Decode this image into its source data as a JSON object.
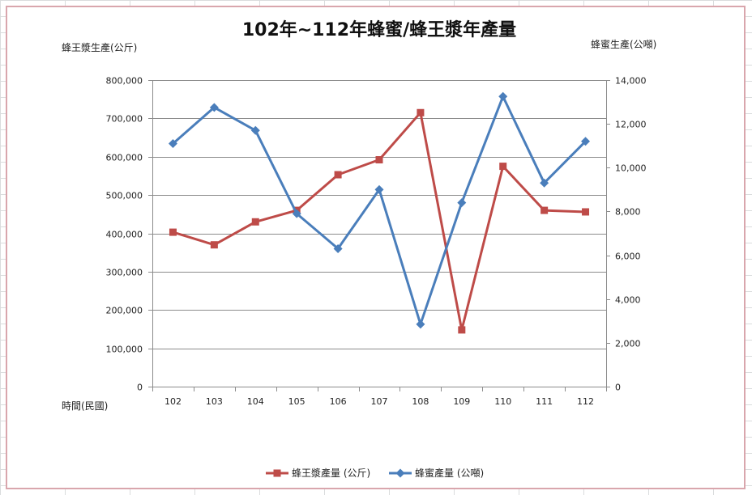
{
  "chart_data": {
    "type": "line",
    "title": "102年~112年蜂蜜/蜂王漿年產量",
    "y_left_label": "蜂王漿生產(公斤)",
    "y_right_label": "蜂蜜生產(公噸)",
    "xlabel": "時間(民國)",
    "categories": [
      "102",
      "103",
      "104",
      "105",
      "106",
      "107",
      "108",
      "109",
      "110",
      "111",
      "112"
    ],
    "y_left_lim": [
      0,
      800000
    ],
    "y_right_lim": [
      0,
      14000
    ],
    "y_left_ticks": [
      "0",
      "100,000",
      "200,000",
      "300,000",
      "400,000",
      "500,000",
      "600,000",
      "700,000",
      "800,000"
    ],
    "y_right_ticks": [
      "0",
      "2,000",
      "4,000",
      "6,000",
      "8,000",
      "10,000",
      "12,000",
      "14,000"
    ],
    "grid": true,
    "legend_position": "bottom",
    "series": [
      {
        "name": "蜂王漿產量 (公斤)",
        "axis": "left",
        "color": "#be4b48",
        "marker": "square",
        "values": [
          403000,
          370000,
          430000,
          460000,
          553000,
          592000,
          715000,
          148000,
          575000,
          460000,
          456000
        ]
      },
      {
        "name": "蜂蜜產量 (公噸)",
        "axis": "right",
        "color": "#4a7ebb",
        "marker": "diamond",
        "values": [
          11100,
          12750,
          11700,
          7900,
          6300,
          9000,
          2850,
          8400,
          13250,
          9300,
          11200
        ]
      }
    ]
  }
}
